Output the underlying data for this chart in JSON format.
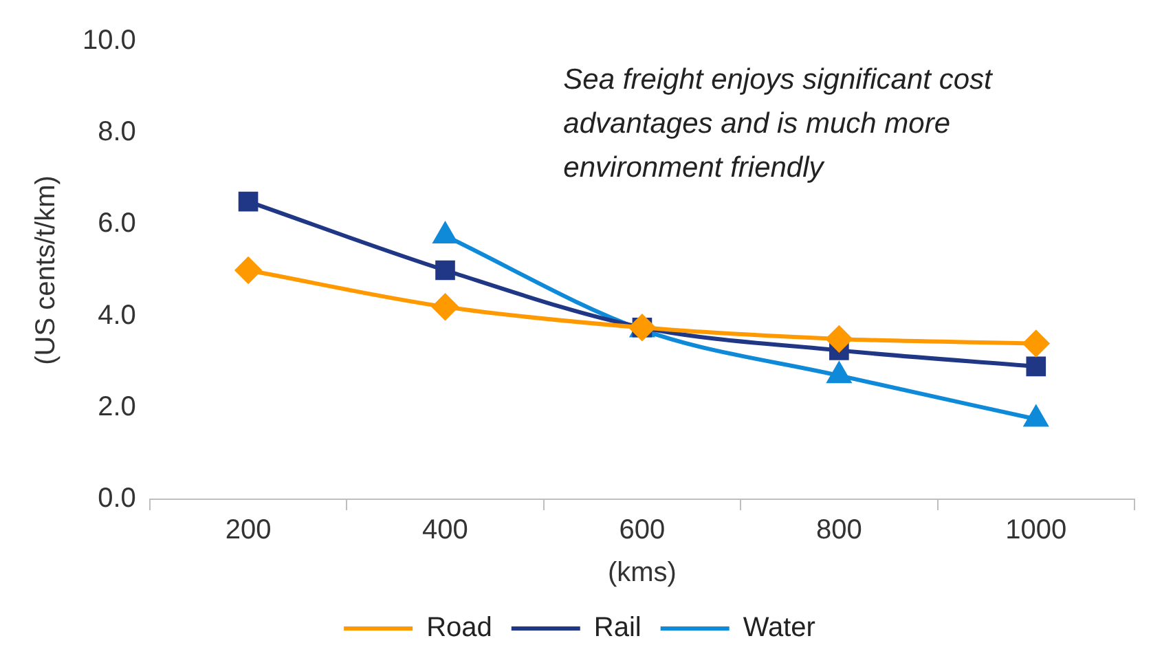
{
  "chart_data": {
    "type": "line",
    "xlabel": "(kms)",
    "ylabel": "(US cents/t/km)",
    "categories": [
      "200",
      "400",
      "600",
      "800",
      "1000"
    ],
    "ylim": [
      0,
      10
    ],
    "yticks": [
      {
        "value": 0,
        "label": "0.0"
      },
      {
        "value": 2,
        "label": "2.0"
      },
      {
        "value": 4,
        "label": "4.0"
      },
      {
        "value": 6,
        "label": "6.0"
      },
      {
        "value": 8,
        "label": "8.0"
      },
      {
        "value": 10,
        "label": "10.0"
      }
    ],
    "series": [
      {
        "name": "Road",
        "color": "#ff9900",
        "marker": "diamond",
        "values": [
          5.0,
          4.2,
          3.75,
          3.5,
          3.4
        ]
      },
      {
        "name": "Rail",
        "color": "#1f3785",
        "marker": "square",
        "values": [
          6.5,
          5.0,
          3.75,
          3.25,
          2.9
        ]
      },
      {
        "name": "Water",
        "color": "#0f8ad8",
        "marker": "triangle",
        "values": [
          null,
          5.75,
          3.7,
          2.7,
          1.75
        ]
      }
    ],
    "annotations": [
      "Sea freight enjoys significant cost\nadvantages and is much more\nenvironment friendly"
    ],
    "legend": "bottom",
    "grid": false
  }
}
